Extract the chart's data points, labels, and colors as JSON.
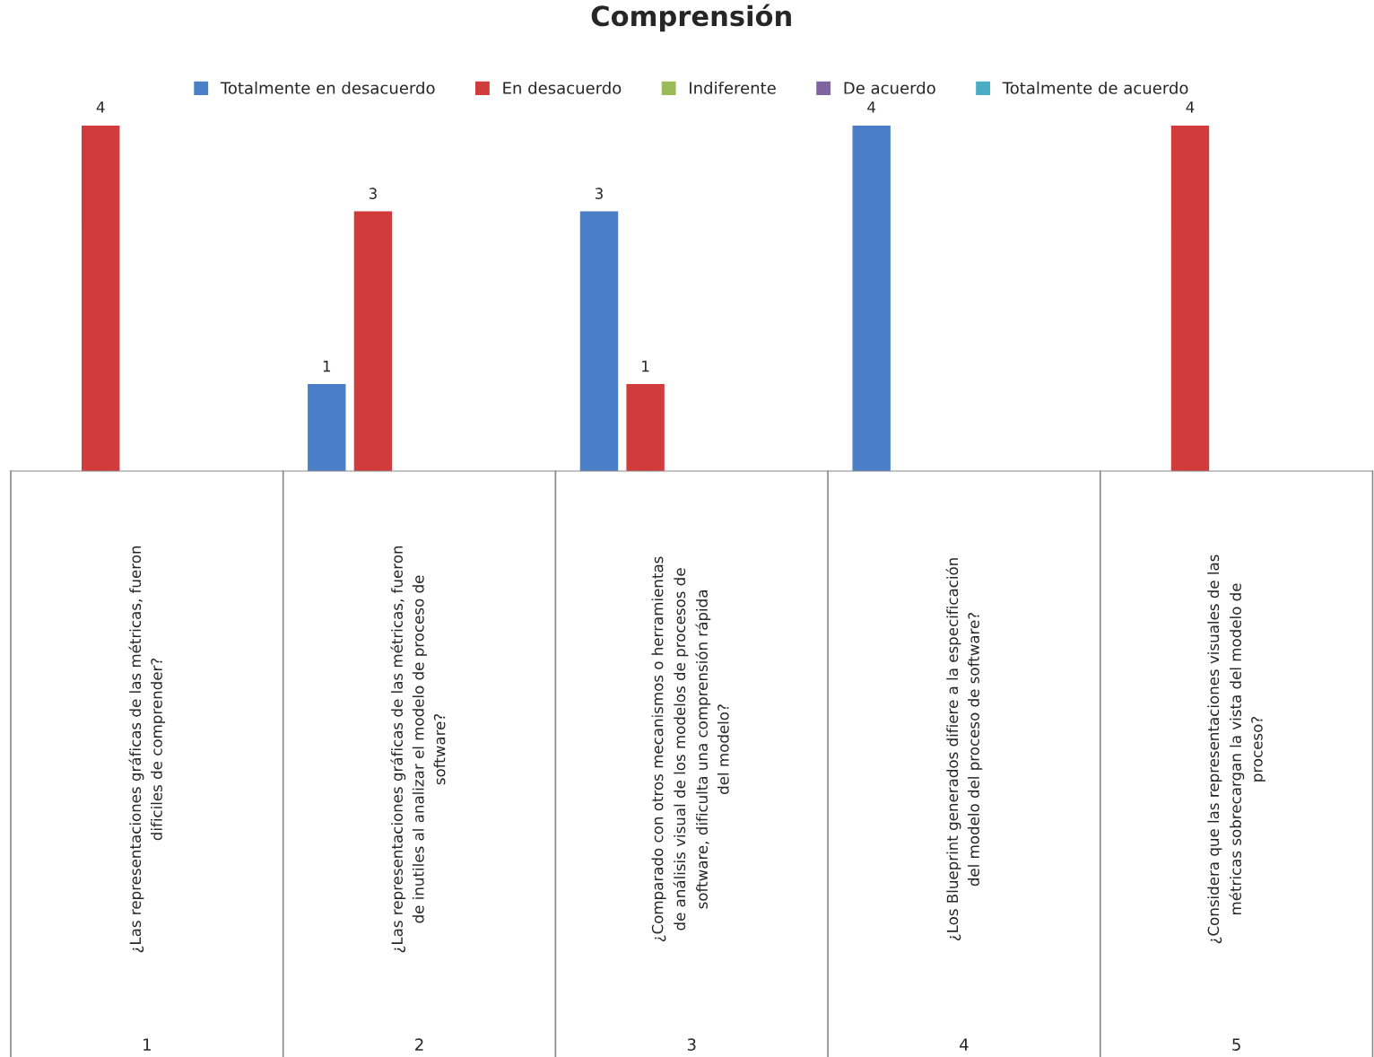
{
  "chart_data": {
    "type": "bar",
    "title": "Comprensión",
    "categories": [
      "1",
      "2",
      "3",
      "4",
      "5"
    ],
    "series": [
      {
        "name": "Totalmente en desacuerdo",
        "color": "#4a7fc8",
        "values": [
          null,
          1,
          3,
          4,
          null
        ]
      },
      {
        "name": "En desacuerdo",
        "color": "#d03c3c",
        "values": [
          4,
          3,
          1,
          null,
          4
        ]
      },
      {
        "name": "Indiferente",
        "color": "#9bbb59",
        "values": [
          null,
          null,
          null,
          null,
          null
        ]
      },
      {
        "name": "De acuerdo",
        "color": "#8064a2",
        "values": [
          null,
          null,
          null,
          null,
          null
        ]
      },
      {
        "name": "Totalmente de acuerdo",
        "color": "#4bacc6",
        "values": [
          null,
          null,
          null,
          null,
          null
        ]
      }
    ],
    "ylim": [
      0,
      4
    ],
    "tick_labels": "x",
    "data_labels": true,
    "legend": "top",
    "grid": false,
    "annotations": [
      "¿Las representaciones gráficas de las métricas, fueron\ndificiles de comprender?",
      "¿Las representaciones gráficas de las métricas, fueron\nde inutiles al analizar el modelo de proceso de\nsoftware?",
      "¿Comparado con otros mecanismos o herramientas\nde análisis visual de los modelos de procesos de\nsoftware, dificulta una comprensión rápida\ndel modelo?",
      "¿Los Blueprint generados difiere a la especificación\ndel modelo del proceso de software?",
      "¿Considera que las representaciones visuales de las\nmétricas sobrecargan la vista del modelo de\nproceso?"
    ]
  }
}
